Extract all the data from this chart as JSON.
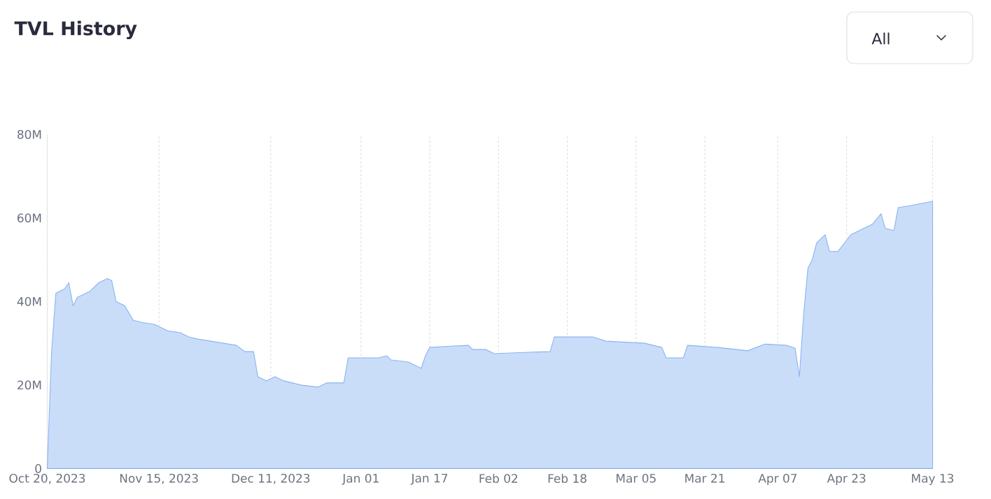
{
  "chart_data": {
    "type": "area",
    "title": "TVL History",
    "annotations": [
      "All"
    ],
    "x": [
      "2023-10-20",
      "2023-10-21",
      "2023-10-22",
      "2023-10-24",
      "2023-10-25",
      "2023-10-26",
      "2023-10-27",
      "2023-10-30",
      "2023-11-01",
      "2023-11-03",
      "2023-11-04",
      "2023-11-05",
      "2023-11-07",
      "2023-11-09",
      "2023-11-11",
      "2023-11-14",
      "2023-11-17",
      "2023-11-20",
      "2023-11-22",
      "2023-11-24",
      "2023-11-27",
      "2023-11-30",
      "2023-12-03",
      "2023-12-05",
      "2023-12-07",
      "2023-12-08",
      "2023-12-10",
      "2023-12-12",
      "2023-12-14",
      "2023-12-18",
      "2023-12-22",
      "2023-12-24",
      "2023-12-28",
      "2023-12-29",
      "2024-01-05",
      "2024-01-07",
      "2024-01-08",
      "2024-01-12",
      "2024-01-15",
      "2024-01-16",
      "2024-01-17",
      "2024-01-22",
      "2024-01-26",
      "2024-01-27",
      "2024-01-30",
      "2024-02-01",
      "2024-02-08",
      "2024-02-14",
      "2024-02-15",
      "2024-02-24",
      "2024-02-27",
      "2024-03-07",
      "2024-03-11",
      "2024-03-12",
      "2024-03-16",
      "2024-03-17",
      "2024-03-24",
      "2024-03-31",
      "2024-04-04",
      "2024-04-09",
      "2024-04-11",
      "2024-04-12",
      "2024-04-13",
      "2024-04-14",
      "2024-04-15",
      "2024-04-16",
      "2024-04-18",
      "2024-04-19",
      "2024-04-21",
      "2024-04-24",
      "2024-04-27",
      "2024-04-29",
      "2024-05-01",
      "2024-05-02",
      "2024-05-04",
      "2024-05-05",
      "2024-05-08",
      "2024-05-13"
    ],
    "values": [
      0,
      28,
      42,
      43,
      44.5,
      39,
      41,
      42.5,
      44.5,
      45.5,
      45,
      40,
      39,
      35.5,
      35,
      34.5,
      33,
      32.5,
      31.5,
      31,
      30.5,
      30,
      29.5,
      28,
      28,
      22,
      21,
      22,
      21,
      20,
      19.5,
      20.5,
      20.5,
      26.5,
      26.5,
      27,
      26,
      25.5,
      24,
      27,
      29,
      29.3,
      29.5,
      28.5,
      28.5,
      27.5,
      27.8,
      28,
      31.5,
      31.5,
      30.5,
      30,
      29,
      26.5,
      26.5,
      29.5,
      29,
      28.2,
      29.8,
      29.5,
      28.8,
      22,
      37,
      48,
      50,
      54,
      56,
      52,
      52,
      56,
      57.5,
      58.5,
      61,
      57.5,
      57,
      62.5,
      63,
      64
    ],
    "color": "#8ab4f0",
    "xlim": [
      "2023-10-20",
      "2024-05-13"
    ],
    "xticks": [
      {
        "value": "2023-10-20",
        "label": "Oct 20, 2023"
      },
      {
        "value": "2023-11-15",
        "label": "Nov 15, 2023"
      },
      {
        "value": "2023-12-11",
        "label": "Dec 11, 2023"
      },
      {
        "value": "2024-01-01",
        "label": "Jan 01"
      },
      {
        "value": "2024-01-17",
        "label": "Jan 17"
      },
      {
        "value": "2024-02-02",
        "label": "Feb 02"
      },
      {
        "value": "2024-02-18",
        "label": "Feb 18"
      },
      {
        "value": "2024-03-05",
        "label": "Mar 05"
      },
      {
        "value": "2024-03-21",
        "label": "Mar 21"
      },
      {
        "value": "2024-04-07",
        "label": "Apr 07"
      },
      {
        "value": "2024-04-23",
        "label": "Apr 23"
      },
      {
        "value": "2024-05-13",
        "label": "May 13"
      }
    ],
    "ylim": [
      0,
      80
    ],
    "yticks": [
      0,
      {
        "value": 20,
        "label": "20M"
      },
      {
        "value": 40,
        "label": "40M"
      },
      {
        "value": 60,
        "label": "60M"
      },
      {
        "value": 80,
        "label": "80M"
      }
    ],
    "grid": "x"
  }
}
